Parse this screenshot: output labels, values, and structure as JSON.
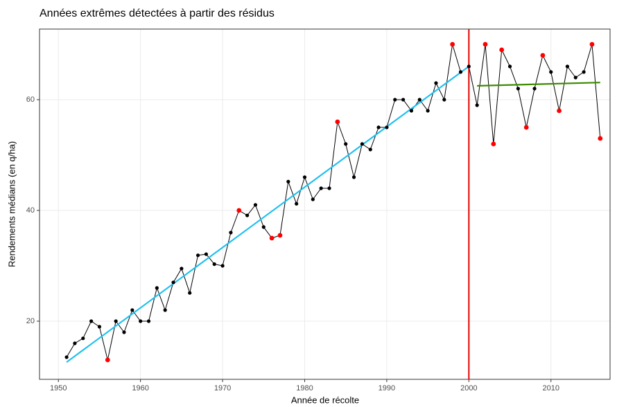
{
  "chart_data": {
    "type": "line",
    "title": "Années extrêmes détectées à partir des résidus",
    "x_label": "Année de récolte",
    "y_label": "Rendements médians (en q/ha)",
    "x": [
      1951,
      1952,
      1953,
      1954,
      1955,
      1956,
      1957,
      1958,
      1959,
      1960,
      1961,
      1962,
      1963,
      1964,
      1965,
      1966,
      1967,
      1968,
      1969,
      1970,
      1971,
      1972,
      1973,
      1974,
      1975,
      1976,
      1977,
      1978,
      1979,
      1980,
      1981,
      1982,
      1983,
      1984,
      1985,
      1986,
      1987,
      1988,
      1989,
      1990,
      1991,
      1992,
      1993,
      1994,
      1995,
      1996,
      1997,
      1998,
      1999,
      2000,
      2001,
      2002,
      2003,
      2004,
      2005,
      2006,
      2007,
      2008,
      2009,
      2010,
      2011,
      2012,
      2013,
      2014,
      2015,
      2016
    ],
    "series": [
      {
        "color": "#000000",
        "values": [
          13.5,
          16,
          16.9,
          20,
          19,
          13,
          20,
          18,
          22,
          20,
          20,
          26,
          22,
          27,
          29.5,
          25.1,
          31.9,
          32.1,
          30.3,
          30,
          36,
          40,
          39.1,
          41,
          37,
          35,
          35.5,
          45.2,
          41.2,
          46,
          42,
          44,
          44,
          56,
          52,
          46,
          52,
          51,
          55,
          55,
          60,
          60,
          58,
          60,
          58,
          63,
          60,
          70,
          65,
          66,
          59,
          70,
          52,
          69,
          66,
          62,
          55,
          62,
          68,
          65,
          58,
          66,
          64,
          65,
          70,
          53
        ],
        "point_colors": [
          "#000000",
          "#000000",
          "#000000",
          "#000000",
          "#000000",
          "#ff0000",
          "#000000",
          "#000000",
          "#000000",
          "#000000",
          "#000000",
          "#000000",
          "#000000",
          "#000000",
          "#000000",
          "#000000",
          "#000000",
          "#000000",
          "#000000",
          "#000000",
          "#000000",
          "#ff0000",
          "#000000",
          "#000000",
          "#000000",
          "#ff0000",
          "#ff0000",
          "#000000",
          "#000000",
          "#000000",
          "#000000",
          "#000000",
          "#000000",
          "#ff0000",
          "#000000",
          "#000000",
          "#000000",
          "#000000",
          "#000000",
          "#000000",
          "#000000",
          "#000000",
          "#000000",
          "#000000",
          "#000000",
          "#000000",
          "#000000",
          "#ff0000",
          "#000000",
          "#000000",
          "#000000",
          "#ff0000",
          "#ff0000",
          "#ff0000",
          "#000000",
          "#000000",
          "#ff0000",
          "#000000",
          "#ff0000",
          "#000000",
          "#ff0000",
          "#000000",
          "#000000",
          "#000000",
          "#ff0000",
          "#ff0000"
        ]
      }
    ],
    "trends": [
      {
        "x": [
          1951,
          2000
        ],
        "values": [
          12.6,
          66
        ],
        "color": "#1ec0f0"
      },
      {
        "x": [
          2001,
          2016
        ],
        "values": [
          62.5,
          63.1
        ],
        "color": "#3a8a00"
      }
    ],
    "vline": {
      "x": 2000,
      "color": "#e00000"
    },
    "xlim": [
      1947.7,
      2017.2
    ],
    "ylim": [
      9.5,
      72.75
    ],
    "xticks": [
      1950,
      1960,
      1970,
      1980,
      1990,
      2000,
      2010
    ],
    "yticks": [
      20,
      40,
      60
    ],
    "grid": true
  }
}
